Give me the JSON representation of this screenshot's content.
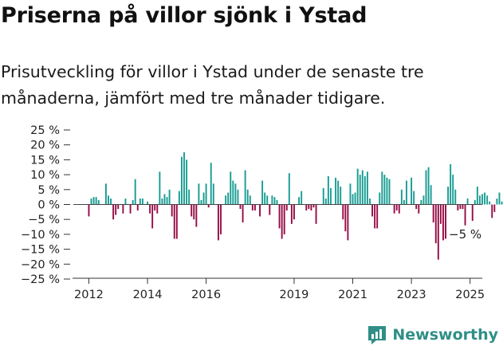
{
  "title": "Priserna på villor sjönk i Ystad",
  "subtitle": "Prisutveckling för villor i Ystad under de senaste tre månaderna, jämfört med tre månader tidigare.",
  "brand": {
    "label": "Newsworthy",
    "icon": "newsworthy-logo-icon"
  },
  "colors": {
    "positive": "#179c92",
    "negative": "#960b45",
    "axis": "#333333"
  },
  "chart_data": {
    "type": "bar",
    "x_start": "2012-01",
    "x_step": "month",
    "xlim": [
      "2011-06",
      "2025-06"
    ],
    "ylim": [
      -25,
      25
    ],
    "yticks": [
      25,
      20,
      15,
      10,
      5,
      0,
      -5,
      -10,
      -15,
      -20,
      -25
    ],
    "ytick_labels": [
      "25 %",
      "20 %",
      "15 %",
      "10 %",
      "5 %",
      "0 %",
      "−5 %",
      "−10 %",
      "−15 %",
      "−20 %",
      "−25 %"
    ],
    "xticks": [
      "2012",
      "2014",
      "2016",
      "2019",
      "2021",
      "2023",
      "2025"
    ],
    "annotation": "−5 %",
    "values": [
      -4,
      2,
      2.5,
      2.5,
      1.5,
      0,
      0,
      7,
      3,
      2,
      -5,
      -3.5,
      -1.5,
      0,
      -3,
      2,
      0,
      -3,
      1.5,
      8.5,
      -2,
      2,
      2,
      0,
      1,
      -3,
      -8,
      -2,
      -3,
      11,
      2,
      3.5,
      2.5,
      5,
      -4,
      -11.5,
      -11.5,
      4.5,
      16,
      17.5,
      15,
      5,
      -4,
      -5,
      -7.5,
      7,
      1.5,
      4,
      7,
      -1,
      14,
      7,
      0,
      -12,
      -10,
      0,
      3,
      4,
      11,
      8,
      7,
      5,
      -1.5,
      -6,
      11.5,
      5,
      3,
      -2,
      -2,
      0,
      -4,
      8,
      4,
      3,
      -3.5,
      3,
      2.5,
      1.5,
      -8,
      -11.5,
      -10,
      -2,
      10.5,
      -6.5,
      -5,
      0,
      2.5,
      4.5,
      0,
      -2,
      -1.5,
      -2,
      -1,
      -6.5,
      0,
      0,
      5.5,
      2,
      9.5,
      5.5,
      0,
      9,
      8,
      6,
      -5,
      -9,
      -12,
      7,
      3.5,
      4,
      12,
      10,
      11.5,
      9.5,
      11,
      2,
      -4,
      -8,
      -8,
      4,
      11,
      10,
      9,
      8.5,
      0,
      -3,
      -2,
      -3,
      5,
      1.5,
      8,
      0,
      9,
      4.5,
      -1.5,
      -3,
      1.5,
      3,
      11.5,
      12.5,
      6.5,
      -6,
      -13,
      -18.5,
      -6.5,
      -12,
      -11.5,
      6,
      13.5,
      10,
      5,
      -2,
      -1.5,
      -1.5,
      -7,
      2,
      0,
      -5.5,
      1.5,
      6,
      3,
      3.5,
      4,
      3,
      1,
      -4.5,
      -2.5,
      2,
      4,
      1,
      -3,
      3,
      -5
    ]
  }
}
